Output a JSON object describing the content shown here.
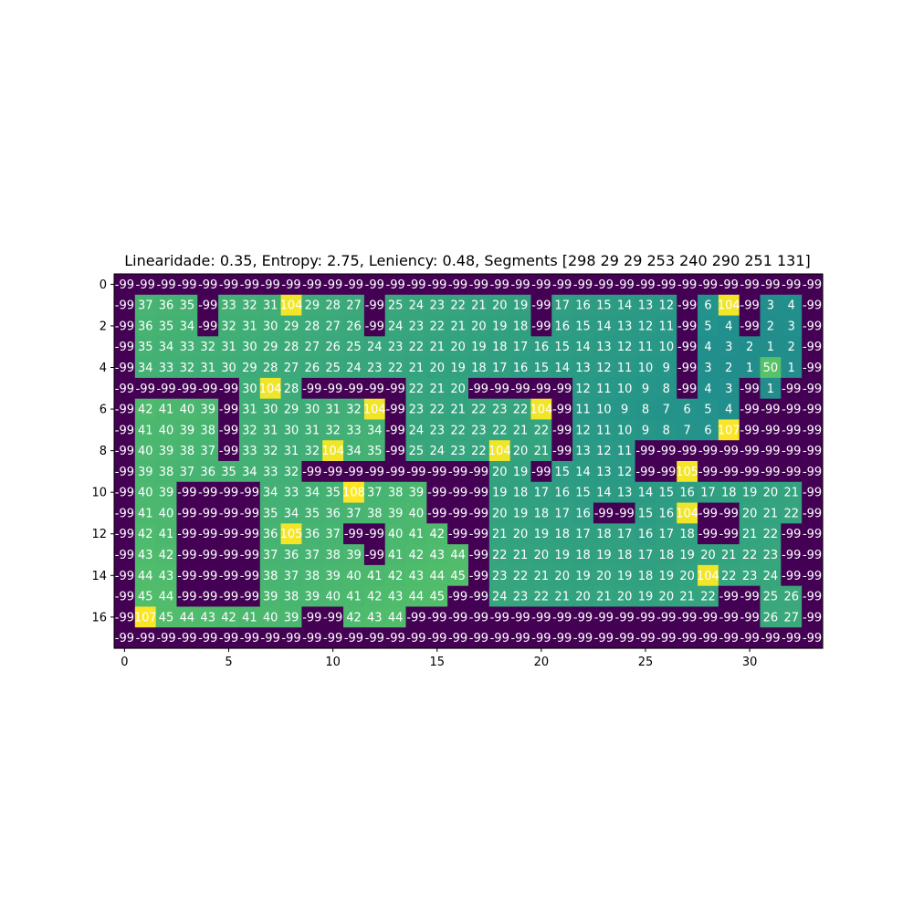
{
  "chart_data": {
    "type": "heatmap",
    "title": "Linearidade: 0.35, Entropy: 2.75, Leniency: 0.48, Segments [298  29  29 253 240 290 251 131]",
    "colormap": "viridis",
    "value_range": [
      -99,
      108
    ],
    "x_ticks": [
      "0",
      "5",
      "10",
      "15",
      "20",
      "25",
      "30"
    ],
    "y_ticks": [
      "0",
      "2",
      "4",
      "6",
      "8",
      "10",
      "12",
      "14",
      "16"
    ],
    "rows": [
      [
        -99,
        -99,
        -99,
        -99,
        -99,
        -99,
        -99,
        -99,
        -99,
        -99,
        -99,
        -99,
        -99,
        -99,
        -99,
        -99,
        -99,
        -99,
        -99,
        -99,
        -99,
        -99,
        -99,
        -99,
        -99,
        -99,
        -99,
        -99,
        -99,
        -99,
        -99,
        -99,
        -99,
        -99
      ],
      [
        -99,
        37,
        36,
        35,
        -99,
        33,
        32,
        31,
        104,
        29,
        28,
        27,
        -99,
        25,
        24,
        23,
        22,
        21,
        20,
        19,
        -99,
        17,
        16,
        15,
        14,
        13,
        12,
        -99,
        6,
        104,
        -99,
        3,
        4,
        -99
      ],
      [
        -99,
        36,
        35,
        34,
        -99,
        32,
        31,
        30,
        29,
        28,
        27,
        26,
        -99,
        24,
        23,
        22,
        21,
        20,
        19,
        18,
        -99,
        16,
        15,
        14,
        13,
        12,
        11,
        -99,
        5,
        4,
        -99,
        2,
        3,
        -99
      ],
      [
        -99,
        35,
        34,
        33,
        32,
        31,
        30,
        29,
        28,
        27,
        26,
        25,
        24,
        23,
        22,
        21,
        20,
        19,
        18,
        17,
        16,
        15,
        14,
        13,
        12,
        11,
        10,
        -99,
        4,
        3,
        2,
        1,
        2,
        -99
      ],
      [
        -99,
        34,
        33,
        32,
        31,
        30,
        29,
        28,
        27,
        26,
        25,
        24,
        23,
        22,
        21,
        20,
        19,
        18,
        17,
        16,
        15,
        14,
        13,
        12,
        11,
        10,
        9,
        -99,
        3,
        2,
        1,
        50,
        1,
        -99
      ],
      [
        -99,
        -99,
        -99,
        -99,
        -99,
        -99,
        30,
        104,
        28,
        -99,
        -99,
        -99,
        -99,
        -99,
        22,
        21,
        20,
        -99,
        -99,
        -99,
        -99,
        -99,
        12,
        11,
        10,
        9,
        8,
        -99,
        4,
        3,
        -99,
        1,
        -99,
        -99
      ],
      [
        -99,
        42,
        41,
        40,
        39,
        -99,
        31,
        30,
        29,
        30,
        31,
        32,
        104,
        -99,
        23,
        22,
        21,
        22,
        23,
        22,
        104,
        -99,
        11,
        10,
        9,
        8,
        7,
        6,
        5,
        4,
        -99,
        -99,
        -99,
        -99
      ],
      [
        -99,
        41,
        40,
        39,
        38,
        -99,
        32,
        31,
        30,
        31,
        32,
        33,
        34,
        -99,
        24,
        23,
        22,
        23,
        22,
        21,
        22,
        -99,
        12,
        11,
        10,
        9,
        8,
        7,
        6,
        107,
        -99,
        -99,
        -99,
        -99
      ],
      [
        -99,
        40,
        39,
        38,
        37,
        -99,
        33,
        32,
        31,
        32,
        104,
        34,
        35,
        -99,
        25,
        24,
        23,
        22,
        104,
        20,
        21,
        -99,
        13,
        12,
        11,
        -99,
        -99,
        -99,
        -99,
        -99,
        -99,
        -99,
        -99,
        -99
      ],
      [
        -99,
        39,
        38,
        37,
        36,
        35,
        34,
        33,
        32,
        -99,
        -99,
        -99,
        -99,
        -99,
        -99,
        -99,
        -99,
        -99,
        20,
        19,
        -99,
        15,
        14,
        13,
        12,
        -99,
        -99,
        105,
        -99,
        -99,
        -99,
        -99,
        -99,
        -99
      ],
      [
        -99,
        40,
        39,
        -99,
        -99,
        -99,
        -99,
        34,
        33,
        34,
        35,
        108,
        37,
        38,
        39,
        -99,
        -99,
        -99,
        19,
        18,
        17,
        16,
        15,
        14,
        13,
        14,
        15,
        16,
        17,
        18,
        19,
        20,
        21,
        -99
      ],
      [
        -99,
        41,
        40,
        -99,
        -99,
        -99,
        -99,
        35,
        34,
        35,
        36,
        37,
        38,
        39,
        40,
        -99,
        -99,
        -99,
        20,
        19,
        18,
        17,
        16,
        -99,
        -99,
        15,
        16,
        104,
        -99,
        -99,
        20,
        21,
        22,
        -99
      ],
      [
        -99,
        42,
        41,
        -99,
        -99,
        -99,
        -99,
        36,
        105,
        36,
        37,
        -99,
        -99,
        40,
        41,
        42,
        -99,
        -99,
        21,
        20,
        19,
        18,
        17,
        18,
        17,
        16,
        17,
        18,
        -99,
        -99,
        21,
        22,
        -99,
        -99
      ],
      [
        -99,
        43,
        42,
        -99,
        -99,
        -99,
        -99,
        37,
        36,
        37,
        38,
        39,
        -99,
        41,
        42,
        43,
        44,
        -99,
        22,
        21,
        20,
        19,
        18,
        19,
        18,
        17,
        18,
        19,
        20,
        21,
        22,
        23,
        -99,
        -99
      ],
      [
        -99,
        44,
        43,
        -99,
        -99,
        -99,
        -99,
        38,
        37,
        38,
        39,
        40,
        41,
        42,
        43,
        44,
        45,
        -99,
        23,
        22,
        21,
        20,
        19,
        20,
        19,
        18,
        19,
        20,
        104,
        22,
        23,
        24,
        -99,
        -99
      ],
      [
        -99,
        45,
        44,
        -99,
        -99,
        -99,
        -99,
        39,
        38,
        39,
        40,
        41,
        42,
        43,
        44,
        45,
        -99,
        -99,
        24,
        23,
        22,
        21,
        20,
        21,
        20,
        19,
        20,
        21,
        22,
        -99,
        -99,
        25,
        26,
        -99
      ],
      [
        -99,
        107,
        45,
        44,
        43,
        42,
        41,
        40,
        39,
        -99,
        -99,
        42,
        43,
        44,
        -99,
        -99,
        -99,
        -99,
        -99,
        -99,
        -99,
        -99,
        -99,
        -99,
        -99,
        -99,
        -99,
        -99,
        -99,
        -99,
        -99,
        26,
        27,
        -99
      ],
      [
        -99,
        -99,
        -99,
        -99,
        -99,
        -99,
        -99,
        -99,
        -99,
        -99,
        -99,
        -99,
        -99,
        -99,
        -99,
        -99,
        -99,
        -99,
        -99,
        -99,
        -99,
        -99,
        -99,
        -99,
        -99,
        -99,
        -99,
        -99,
        -99,
        -99,
        -99,
        -99,
        -99,
        -99
      ]
    ]
  }
}
